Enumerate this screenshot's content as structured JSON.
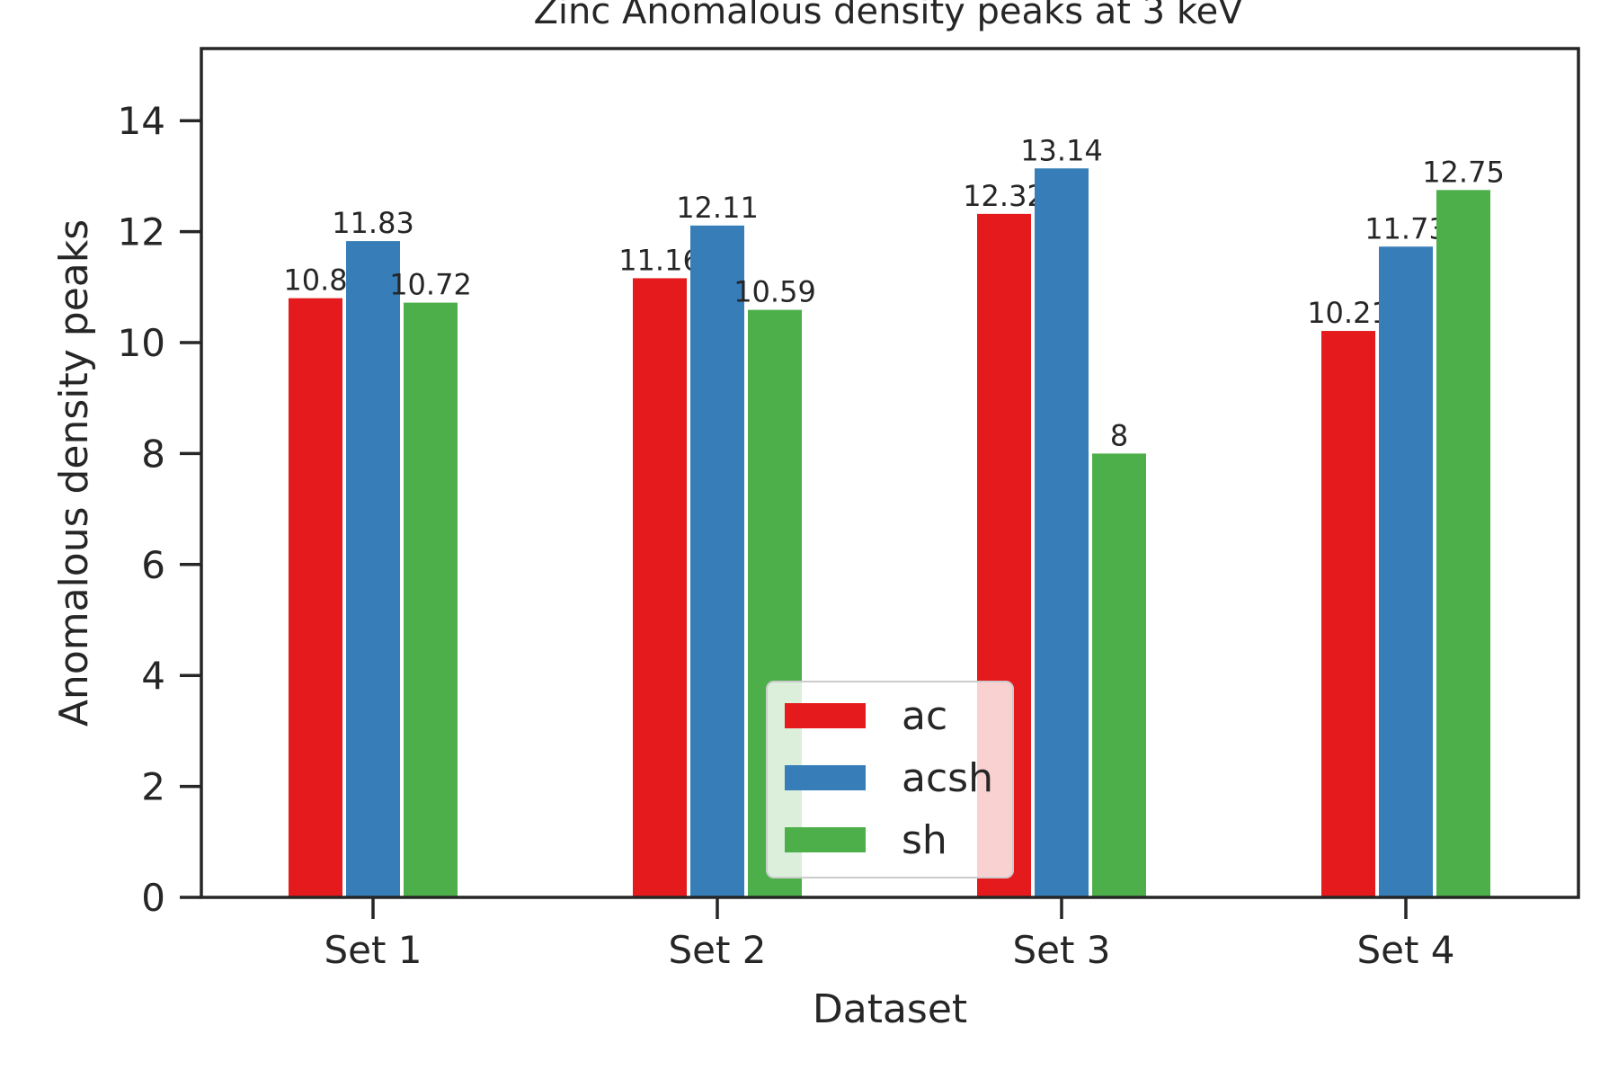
{
  "chart_data": {
    "type": "bar",
    "title": "Zinc Anomalous density peaks at 3 keV",
    "xlabel": "Dataset",
    "ylabel": "Anomalous density peaks",
    "categories": [
      "Set 1",
      "Set 2",
      "Set 3",
      "Set 4"
    ],
    "ylim": [
      0,
      15.3
    ],
    "yticks": [
      "0",
      "2",
      "4",
      "6",
      "8",
      "10",
      "12",
      "14"
    ],
    "series": [
      {
        "name": "ac",
        "color": "#e41a1c",
        "values": [
          10.8,
          11.16,
          12.32,
          10.21
        ]
      },
      {
        "name": "acsh",
        "color": "#377eb8",
        "values": [
          11.83,
          12.11,
          13.14,
          11.73
        ]
      },
      {
        "name": "sh",
        "color": "#4daf4a",
        "values": [
          10.72,
          10.59,
          8,
          12.75
        ]
      }
    ],
    "data_labels": [
      [
        "10.8",
        "11.16",
        "12.32",
        "10.21"
      ],
      [
        "11.83",
        "12.11",
        "13.14",
        "11.73"
      ],
      [
        "10.72",
        "10.59",
        "8",
        "12.75"
      ]
    ],
    "legend": {
      "placement": "lower-center"
    },
    "grid": false
  }
}
